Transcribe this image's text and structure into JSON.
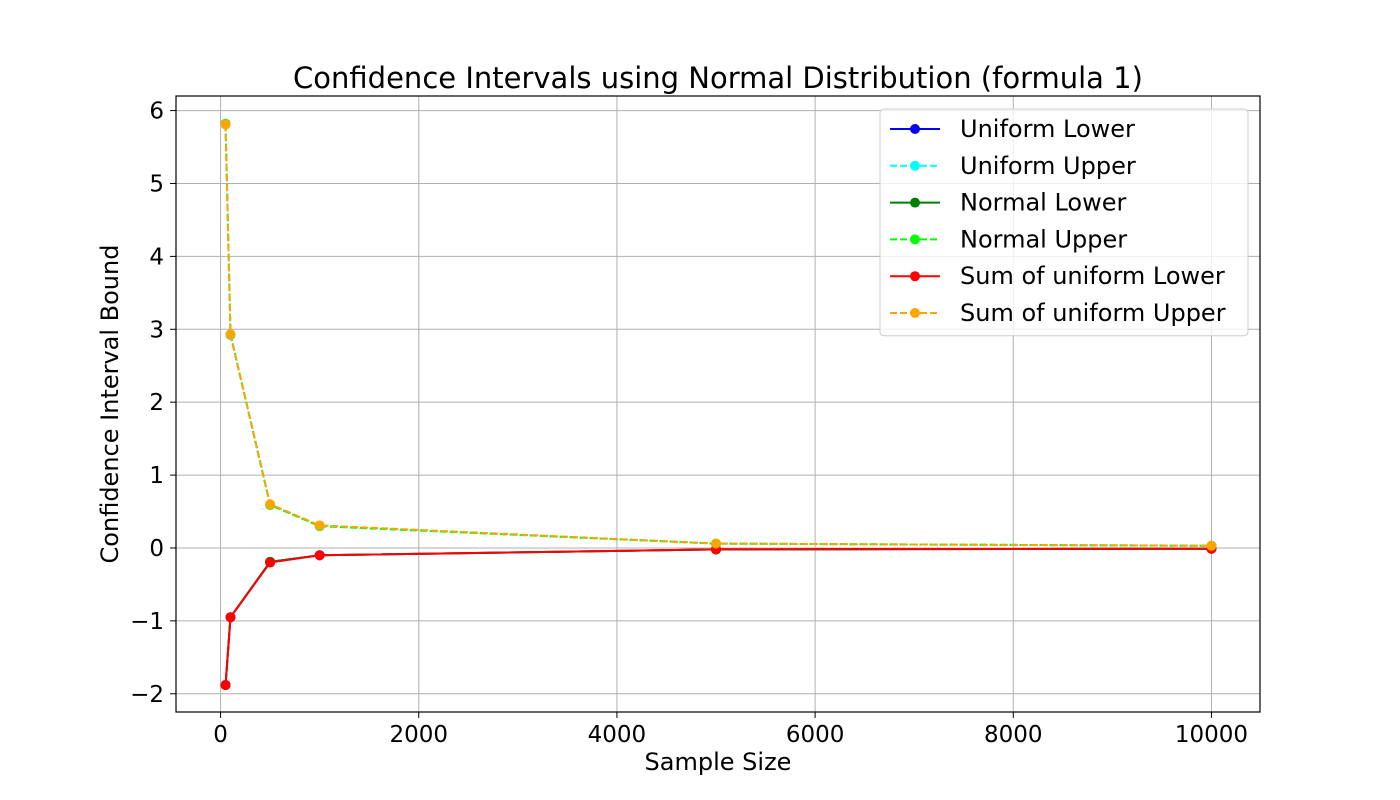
{
  "chart_data": {
    "type": "line",
    "title": "Confidence Intervals using Normal Distribution (formula 1)",
    "xlabel": "Sample Size",
    "ylabel": "Confidence Interval Bound",
    "xlim": [
      -450,
      10490
    ],
    "ylim": [
      -2.25,
      6.2
    ],
    "x_ticks": [
      0,
      2000,
      4000,
      6000,
      8000,
      10000
    ],
    "x_tick_labels": [
      "0",
      "2000",
      "4000",
      "6000",
      "8000",
      "10000"
    ],
    "y_ticks": [
      -2,
      -1,
      0,
      1,
      2,
      3,
      4,
      5,
      6
    ],
    "y_tick_labels": [
      "−2",
      "−1",
      "0",
      "1",
      "2",
      "3",
      "4",
      "5",
      "6"
    ],
    "grid": true,
    "legend_position": "top-right",
    "x": [
      50,
      100,
      500,
      1000,
      5000,
      10000
    ],
    "series": [
      {
        "name": "Uniform Lower",
        "color": "#0000ff",
        "dash": "solid",
        "values": [
          -1.88,
          -0.95,
          -0.19,
          -0.1,
          -0.02,
          -0.01
        ]
      },
      {
        "name": "Uniform Upper",
        "color": "#00ffff",
        "dash": "dashed",
        "values": [
          5.82,
          2.92,
          0.59,
          0.3,
          0.06,
          0.03
        ]
      },
      {
        "name": "Normal Lower",
        "color": "#008000",
        "dash": "solid",
        "values": [
          -1.88,
          -0.95,
          -0.19,
          -0.1,
          -0.02,
          -0.01
        ]
      },
      {
        "name": "Normal Upper",
        "color": "#00ff00",
        "dash": "dashed",
        "values": [
          5.82,
          2.93,
          0.59,
          0.3,
          0.06,
          0.03
        ]
      },
      {
        "name": "Sum of uniform Lower",
        "color": "#ff0000",
        "dash": "solid",
        "values": [
          -1.88,
          -0.95,
          -0.2,
          -0.1,
          -0.02,
          -0.01
        ]
      },
      {
        "name": "Sum of uniform Upper",
        "color": "#ffa500",
        "dash": "dashed",
        "values": [
          5.81,
          2.93,
          0.6,
          0.31,
          0.06,
          0.03
        ]
      }
    ]
  }
}
